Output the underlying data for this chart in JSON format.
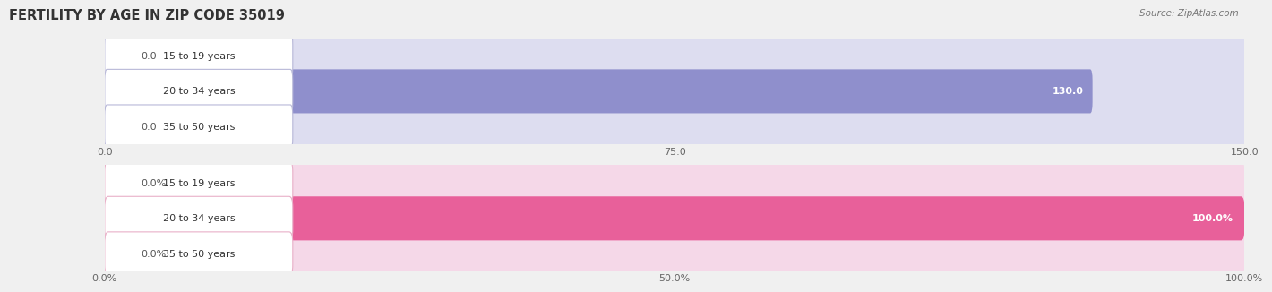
{
  "title": "FERTILITY BY AGE IN ZIP CODE 35019",
  "source": "Source: ZipAtlas.com",
  "top_chart": {
    "categories": [
      "15 to 19 years",
      "20 to 34 years",
      "35 to 50 years"
    ],
    "values": [
      0.0,
      130.0,
      0.0
    ],
    "xlim": [
      0,
      150.0
    ],
    "xticks": [
      0.0,
      75.0,
      150.0
    ],
    "xtick_labels": [
      "0.0",
      "75.0",
      "150.0"
    ],
    "bar_color": "#8f8fcc",
    "bar_bg_color": "#ddddf0",
    "label_bg_color": "#ffffff",
    "label_border_color": "#b8b8d8",
    "value_labels": [
      "0.0",
      "130.0",
      "0.0"
    ],
    "bar_height": 0.62
  },
  "bottom_chart": {
    "categories": [
      "15 to 19 years",
      "20 to 34 years",
      "35 to 50 years"
    ],
    "values": [
      0.0,
      100.0,
      0.0
    ],
    "xlim": [
      0,
      100.0
    ],
    "xticks": [
      0.0,
      50.0,
      100.0
    ],
    "xtick_labels": [
      "0.0%",
      "50.0%",
      "100.0%"
    ],
    "bar_color": "#e8609a",
    "bar_bg_color": "#f5d8e8",
    "label_bg_color": "#ffffff",
    "label_border_color": "#e8b0c8",
    "value_labels": [
      "0.0%",
      "100.0%",
      "0.0%"
    ],
    "bar_height": 0.62
  },
  "fig_bg_color": "#f0f0f0",
  "title_fontsize": 10.5,
  "label_fontsize": 8,
  "value_fontsize": 8,
  "tick_fontsize": 8,
  "source_fontsize": 7.5
}
